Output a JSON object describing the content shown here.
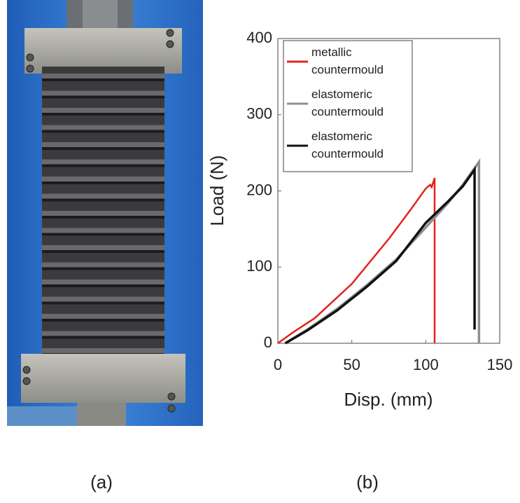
{
  "panel_labels": [
    "(a)",
    "(b)"
  ],
  "chart_data": {
    "type": "line",
    "x_label": "Disp. (mm)",
    "y_label": "Load (N)",
    "xlim": [
      0,
      150
    ],
    "ylim": [
      0,
      400
    ],
    "xticks": [
      0,
      50,
      100,
      150
    ],
    "yticks": [
      0,
      100,
      200,
      300,
      400
    ],
    "grid": false,
    "legend": "upper left",
    "series": [
      {
        "name": "metallic\ncountermould",
        "color": "#e3231c",
        "x": [
          0,
          10,
          25,
          50,
          75,
          90,
          100,
          103,
          104,
          106,
          106
        ],
        "values": [
          0,
          14,
          33,
          78,
          137,
          176,
          203,
          208,
          205,
          217,
          0
        ]
      },
      {
        "name": "elastomeric\ncountermould",
        "color": "#8f8f8f",
        "x": [
          5,
          20,
          40,
          60,
          80,
          100,
          115,
          125,
          136,
          136
        ],
        "values": [
          0,
          18,
          45,
          76,
          110,
          152,
          184,
          208,
          238,
          0
        ]
      },
      {
        "name": "elastomeric\ncountermould",
        "color": "#111111",
        "x": [
          5,
          20,
          40,
          60,
          80,
          100,
          115,
          125,
          133,
          133
        ],
        "values": [
          0,
          17,
          43,
          74,
          108,
          158,
          186,
          206,
          228,
          18
        ]
      }
    ]
  }
}
